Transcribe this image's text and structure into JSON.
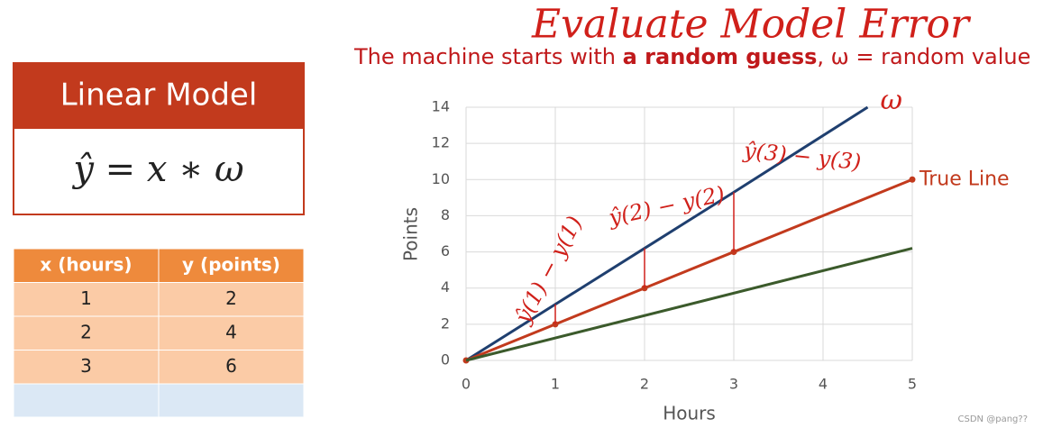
{
  "title": "Evaluate Model Error",
  "subtitle": {
    "before": "The machine starts with ",
    "bold": "a random guess",
    "after": ", ω = random value"
  },
  "model_box": {
    "header": "Linear Model",
    "formula": "ŷ = x ∗ ω"
  },
  "table": {
    "columns": [
      "x (hours)",
      "y (points)"
    ],
    "rows": [
      [
        1,
        2
      ],
      [
        2,
        4
      ],
      [
        3,
        6
      ]
    ]
  },
  "watermark": "CSDN @pang??",
  "chart_data": {
    "type": "line",
    "x_label": "Hours",
    "y_label": "Points",
    "xlim": [
      0,
      5
    ],
    "ylim": [
      0,
      14
    ],
    "xticks": [
      0,
      1,
      2,
      3,
      4,
      5
    ],
    "yticks": [
      0,
      2,
      4,
      6,
      8,
      10,
      12,
      14
    ],
    "grid": true,
    "series": [
      {
        "name": "ω",
        "color": "#1f3f6f",
        "x": [
          0,
          1,
          2,
          3,
          4.5
        ],
        "values": [
          0,
          3.1,
          6.2,
          9.3,
          14
        ]
      },
      {
        "name": "True Line",
        "color": "#c23a1d",
        "x": [
          0,
          1,
          2,
          3,
          5
        ],
        "values": [
          0,
          2,
          4,
          6,
          10
        ],
        "markers": true
      },
      {
        "color": "#3b5a2b",
        "x": [
          0,
          5
        ],
        "values": [
          0,
          6.2
        ]
      }
    ],
    "error_annotations": [
      "ŷ(1) − y(1)",
      "ŷ(2) − y(2)",
      "ŷ(3) − y(3)"
    ]
  }
}
